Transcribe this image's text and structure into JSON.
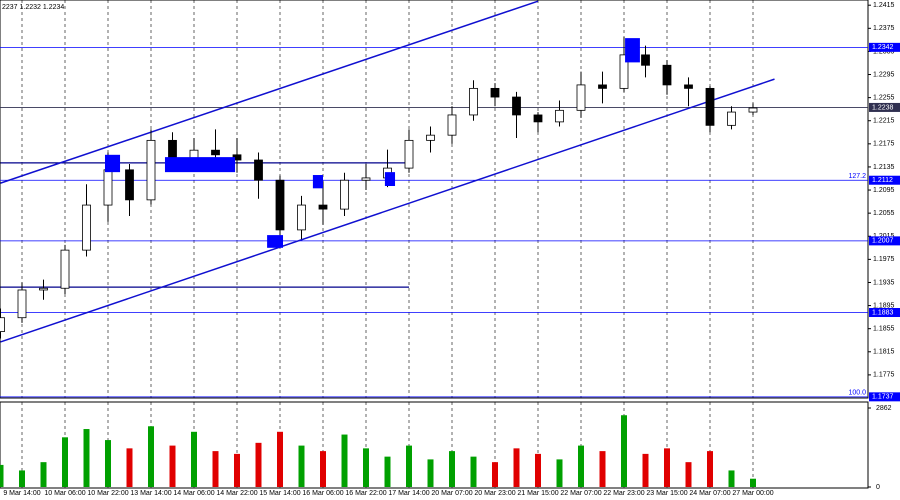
{
  "chart_data": {
    "type": "candlestick",
    "title": "2237 1.2232 1.2234",
    "categories": [
      null,
      "9 Mar 14:00",
      null,
      "10 Mar 06:00",
      null,
      "10 Mar 22:00",
      null,
      "13 Mar 14:00",
      null,
      "14 Mar 06:00",
      null,
      "14 Mar 22:00",
      null,
      "15 Mar 14:00",
      null,
      "16 Mar 06:00",
      null,
      "16 Mar 22:00",
      null,
      "17 Mar 14:00",
      null,
      "20 Mar 07:00",
      null,
      "20 Mar 23:00",
      null,
      "21 Mar 15:00",
      null,
      "22 Mar 07:00",
      null,
      "22 Mar 23:00",
      null,
      "23 Mar 15:00",
      null,
      "24 Mar 07:00",
      null,
      "27 Mar 00:00"
    ],
    "open": [
      1.185,
      1.1874,
      1.1922,
      1.1925,
      1.1991,
      1.2069,
      1.213,
      1.2078,
      1.2181,
      1.2147,
      1.2164,
      1.2156,
      1.2147,
      1.2112,
      1.2026,
      1.2069,
      1.2062,
      1.2112,
      1.2116,
      1.2133,
      1.2181,
      1.219,
      1.2225,
      1.2271,
      1.2256,
      1.2225,
      1.2213,
      1.2233,
      1.2277,
      1.2271,
      1.2329,
      1.2311,
      1.2277,
      1.2271,
      1.2207,
      1.223
    ],
    "high": [
      1.189,
      1.1935,
      1.194,
      1.2,
      1.2105,
      1.216,
      1.214,
      1.22,
      1.2195,
      1.2185,
      1.22,
      1.2185,
      1.216,
      1.212,
      1.2085,
      1.211,
      1.2125,
      1.214,
      1.2165,
      1.22,
      1.2205,
      1.224,
      1.2285,
      1.228,
      1.2265,
      1.223,
      1.225,
      1.23,
      1.23,
      1.236,
      1.2345,
      1.232,
      1.229,
      1.2275,
      1.224,
      1.2245
    ],
    "low": [
      1.1838,
      1.1865,
      1.1905,
      1.1915,
      1.198,
      1.204,
      1.205,
      1.207,
      1.213,
      1.213,
      1.2135,
      1.2125,
      1.208,
      1.2,
      1.201,
      1.2035,
      1.205,
      1.2095,
      1.21,
      1.2125,
      1.216,
      1.2175,
      1.2215,
      1.224,
      1.2185,
      1.2195,
      1.2205,
      1.222,
      1.2245,
      1.2265,
      1.229,
      1.226,
      1.224,
      1.2195,
      1.22,
      1.2225
    ],
    "close": [
      1.1874,
      1.1922,
      1.1925,
      1.1991,
      1.2069,
      1.213,
      1.2078,
      1.2181,
      1.2147,
      1.2164,
      1.2156,
      1.2147,
      1.2112,
      1.2026,
      1.2069,
      1.2062,
      1.2112,
      1.2116,
      1.2133,
      1.2181,
      1.219,
      1.2225,
      1.2271,
      1.2256,
      1.2225,
      1.2213,
      1.2233,
      1.2277,
      1.2271,
      1.2329,
      1.2311,
      1.2277,
      1.2271,
      1.2207,
      1.223,
      1.2237
    ],
    "volume": [
      800,
      600,
      900,
      1800,
      2100,
      1700,
      1400,
      2200,
      1500,
      2000,
      1300,
      1200,
      1600,
      2000,
      1500,
      1300,
      1900,
      1400,
      1100,
      1500,
      1000,
      1300,
      1100,
      900,
      1400,
      1200,
      1000,
      1500,
      1300,
      2600,
      1200,
      1400,
      900,
      1300,
      600,
      300
    ],
    "up_color": "#00a000",
    "down_color": "#e00000",
    "ylim": [
      1.1735,
      1.2424
    ],
    "yticks": [
      1.2415,
      1.2375,
      1.2335,
      1.2295,
      1.2255,
      1.2215,
      1.2175,
      1.2135,
      1.2095,
      1.2055,
      1.2015,
      1.1975,
      1.1935,
      1.1895,
      1.1855,
      1.1815,
      1.1775
    ],
    "volume_ylim": [
      0,
      2862
    ],
    "volume_yticks": [
      0,
      2862
    ],
    "grid": true,
    "levels": [
      {
        "value": 1.2342,
        "color": "#0000ff"
      },
      {
        "value": 1.2238,
        "color": "#303050"
      },
      {
        "value": 1.2112,
        "color": "#0000ff",
        "fib_label": "127.2"
      },
      {
        "value": 1.2007,
        "color": "#0000ff"
      },
      {
        "value": 1.1883,
        "color": "#0000ff"
      },
      {
        "value": 1.1737,
        "color": "#0000ff",
        "fib_label": "100.0"
      }
    ],
    "segments": [
      {
        "start": [
          0,
          1.2142
        ],
        "end": [
          19,
          1.2142
        ],
        "color": "#00008b"
      },
      {
        "start": [
          0,
          1.1927
        ],
        "end": [
          19,
          1.1927
        ],
        "color": "#00008b"
      }
    ],
    "trendlines": [
      {
        "start": [
          0,
          1.2107
        ],
        "end": [
          25,
          1.2422
        ],
        "color": "#1010d0"
      },
      {
        "start": [
          0,
          1.1832
        ],
        "end": [
          36,
          1.2287
        ],
        "color": "#1010d0"
      }
    ],
    "boxes": [
      {
        "x": [
          4.86,
          5.56
        ],
        "y": [
          1.2126,
          1.2156
        ]
      },
      {
        "x": [
          7.65,
          10.91
        ],
        "y": [
          1.2126,
          1.2152
        ]
      },
      {
        "x": [
          14.53,
          15.0
        ],
        "y": [
          1.2098,
          1.2121
        ]
      },
      {
        "x": [
          17.88,
          18.35
        ],
        "y": [
          1.2102,
          1.2126
        ]
      },
      {
        "x": [
          12.4,
          13.14
        ],
        "y": [
          1.1995,
          1.2017
        ]
      },
      {
        "x": [
          29.05,
          29.74
        ],
        "y": [
          1.2316,
          1.2358
        ]
      }
    ],
    "box_color": "#0000ff"
  }
}
